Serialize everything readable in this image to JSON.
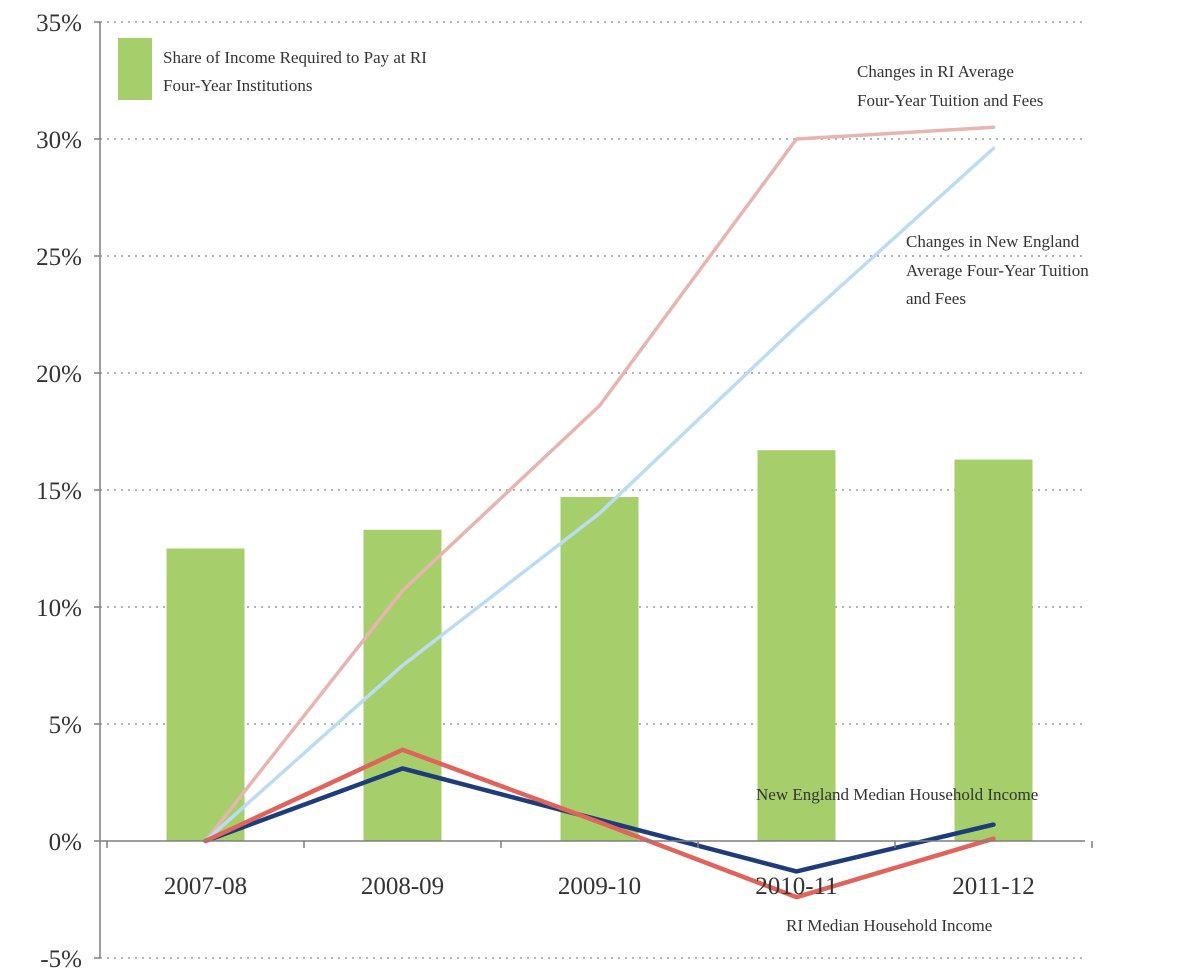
{
  "chart_data": {
    "type": "bar",
    "categories": [
      "2007-08",
      "2008-09",
      "2009-10",
      "2010-11",
      "2011-12"
    ],
    "ylim": [
      -5,
      35
    ],
    "yticks": [
      "-5%",
      "0%",
      "5%",
      "10%",
      "15%",
      "20%",
      "25%",
      "30%",
      "35%"
    ],
    "grid": true,
    "legend_position": "top-left",
    "bars": {
      "name": "Share of Income Required to Pay at RI Four-Year Institutions",
      "values": [
        12.5,
        13.3,
        14.7,
        16.7,
        16.3
      ],
      "color": "#a6cf6c"
    },
    "lines": [
      {
        "name": "Changes in RI Average Four-Year Tuition and Fees",
        "values": [
          0,
          10.7,
          18.6,
          30.0,
          30.5
        ],
        "color": "#e8b4b0",
        "width": 3.5
      },
      {
        "name": "Changes in New England Average Four-Year Tuition and Fees",
        "values": [
          0,
          7.5,
          14.0,
          22.0,
          29.6
        ],
        "color": "#bcdcf2",
        "width": 3.5
      },
      {
        "name": "New England Median Household Income",
        "values": [
          0,
          3.1,
          0.9,
          -1.3,
          0.7
        ],
        "color": "#1f3c7a",
        "width": 4.5
      },
      {
        "name": "RI Median Household Income",
        "values": [
          0,
          3.9,
          0.8,
          -2.4,
          0.1
        ],
        "color": "#e0635c",
        "width": 4.5
      }
    ],
    "annotations": [
      [
        "Changes in RI Average",
        "Four-Year Tuition and Fees"
      ],
      [
        "Changes in New England",
        "Average Four-Year Tuition",
        "and Fees"
      ],
      [
        "New England Median Household Income"
      ],
      [
        "RI Median Household Income"
      ]
    ],
    "legend": [
      "Share of Income Required to Pay at RI",
      "Four-Year Institutions"
    ]
  }
}
